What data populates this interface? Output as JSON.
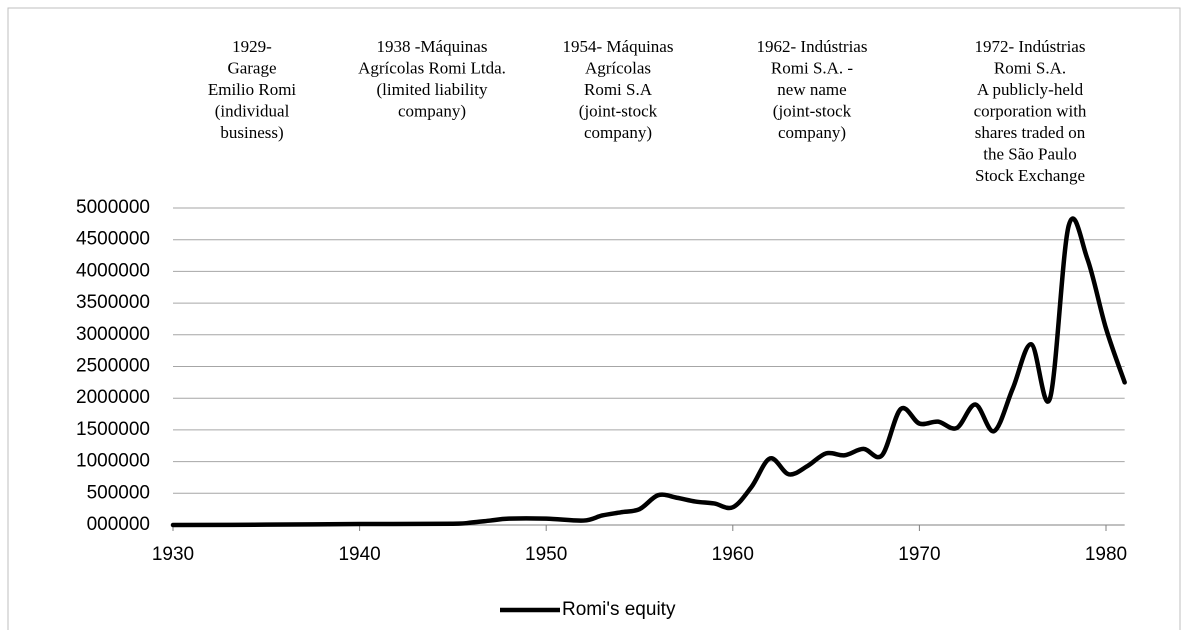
{
  "chart_data": {
    "type": "line",
    "annotations": [
      [
        "1929-",
        "Garage",
        "Emilio Romi",
        "(individual",
        "business)"
      ],
      [
        "1938 -Máquinas",
        "Agrícolas Romi Ltda.",
        "(limited liability",
        "company)"
      ],
      [
        "1954- Máquinas",
        "Agrícolas",
        "Romi S.A",
        "(joint-stock",
        "company)"
      ],
      [
        "1962- Indústrias",
        "Romi S.A. -",
        "new name",
        "(joint-stock",
        "company)"
      ],
      [
        "1972- Indústrias",
        "Romi S.A.",
        "A publicly-held",
        "corporation with",
        "shares traded on",
        "the São Paulo",
        "Stock Exchange"
      ]
    ],
    "x": [
      1930,
      1935,
      1940,
      1945,
      1946,
      1947,
      1948,
      1950,
      1952,
      1953,
      1954,
      1955,
      1956,
      1957,
      1958,
      1959,
      1960,
      1961,
      1962,
      1963,
      1964,
      1965,
      1966,
      1967,
      1968,
      1969,
      1970,
      1971,
      1972,
      1973,
      1974,
      1975,
      1976,
      1977,
      1978,
      1979,
      1980,
      1981
    ],
    "series": [
      {
        "name": "Romi's equity",
        "color": "#000000",
        "values": [
          0,
          5000,
          15000,
          20000,
          40000,
          70000,
          100000,
          100000,
          70000,
          150000,
          200000,
          250000,
          470000,
          430000,
          370000,
          340000,
          280000,
          600000,
          1050000,
          800000,
          930000,
          1130000,
          1100000,
          1200000,
          1100000,
          1830000,
          1600000,
          1630000,
          1530000,
          1900000,
          1480000,
          2150000,
          2850000,
          2000000,
          4720000,
          4200000,
          3100000,
          2250000
        ]
      }
    ],
    "xlim": [
      1930,
      1981
    ],
    "xticks": [
      1930,
      1940,
      1950,
      1960,
      1970,
      1980
    ],
    "ylim": [
      0,
      5000000
    ],
    "yticks": [
      {
        "value": 0,
        "label": "000000"
      },
      500000,
      1000000,
      1500000,
      2000000,
      2500000,
      3000000,
      3500000,
      4000000,
      4500000,
      5000000
    ],
    "grid": true,
    "legend": "bottom"
  }
}
